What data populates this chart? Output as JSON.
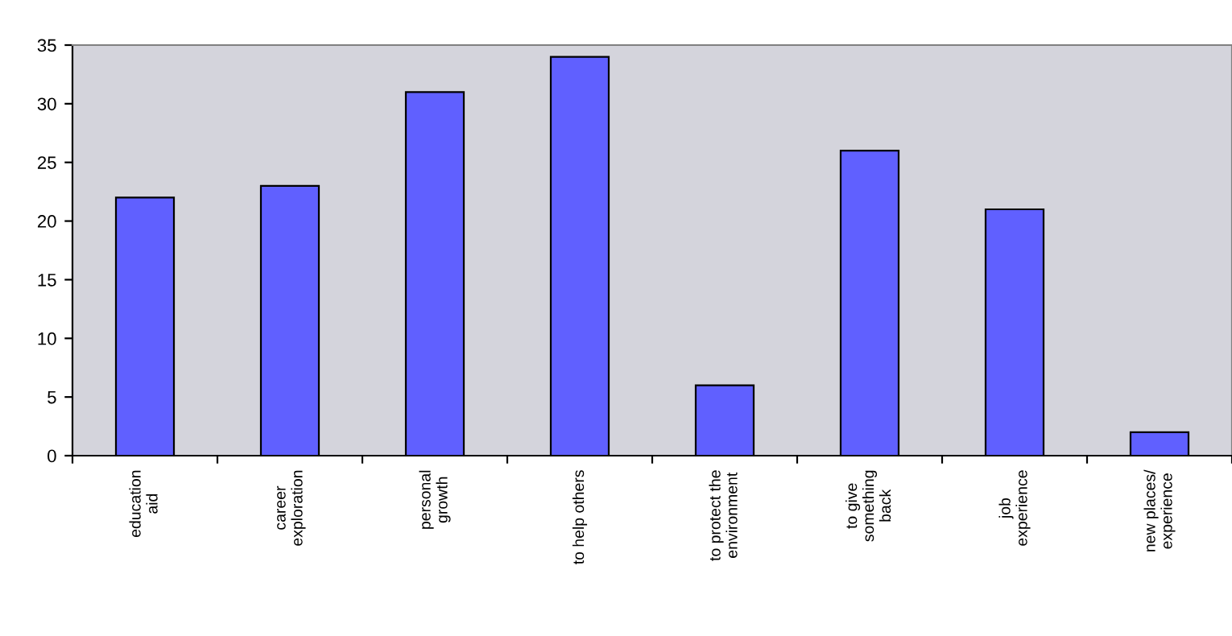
{
  "chart_data": {
    "type": "bar",
    "categories": [
      "education\naid",
      "career\nexploration",
      "personal\ngrowth",
      "to help others",
      "to protect the\nenvironment",
      "to give\nsomething\nback",
      "job\nexperience",
      "new places/\nexperience"
    ],
    "values": [
      22,
      23,
      31,
      34,
      6,
      26,
      21,
      2
    ],
    "color": "#6060ff",
    "ylim": [
      0,
      35
    ],
    "yticks": [
      0,
      5,
      10,
      15,
      20,
      25,
      30,
      35
    ],
    "grid": false
  }
}
